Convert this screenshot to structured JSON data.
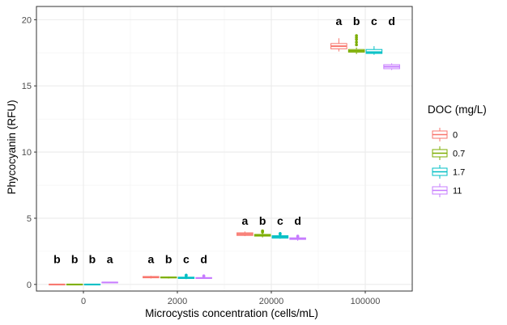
{
  "chart_data": {
    "type": "box",
    "xlabel": "Microcystis concentration (cells/mL)",
    "ylabel": "Phycocyanin (RFU)",
    "categories": [
      "0",
      "2000",
      "20000",
      "100000"
    ],
    "yticks": [
      0,
      5,
      10,
      15,
      20
    ],
    "ylim": [
      -0.5,
      21.0
    ],
    "grid": true,
    "legend": {
      "title": "DOC (mg/L)",
      "position": "right",
      "entries": [
        "0",
        "0.7",
        "1.7",
        "11"
      ]
    },
    "series": [
      {
        "name": "0",
        "color": "#F8766D",
        "boxes": [
          {
            "min": 0.0,
            "q1": 0.0,
            "median": 0.0,
            "q3": 0.02,
            "max": 0.04,
            "outliers": []
          },
          {
            "min": 0.45,
            "q1": 0.5,
            "median": 0.55,
            "q3": 0.6,
            "max": 0.65,
            "outliers": []
          },
          {
            "min": 3.65,
            "q1": 3.7,
            "median": 3.8,
            "q3": 3.9,
            "max": 4.0,
            "outliers": []
          },
          {
            "min": 17.6,
            "q1": 17.8,
            "median": 18.0,
            "q3": 18.2,
            "max": 18.6,
            "outliers": []
          }
        ],
        "letters": [
          "b",
          "a",
          "a",
          "a"
        ]
      },
      {
        "name": "0.7",
        "color": "#7CAE00",
        "boxes": [
          {
            "min": 0.0,
            "q1": 0.0,
            "median": 0.0,
            "q3": 0.02,
            "max": 0.03,
            "outliers": []
          },
          {
            "min": 0.45,
            "q1": 0.5,
            "median": 0.52,
            "q3": 0.56,
            "max": 0.6,
            "outliers": []
          },
          {
            "min": 3.55,
            "q1": 3.65,
            "median": 3.7,
            "q3": 3.78,
            "max": 3.85,
            "outliers": [
              3.95,
              4.0,
              4.05
            ]
          },
          {
            "min": 17.4,
            "q1": 17.55,
            "median": 17.65,
            "q3": 17.75,
            "max": 17.9,
            "outliers": [
              18.1,
              18.3,
              18.5,
              18.65,
              18.8
            ]
          }
        ],
        "letters": [
          "b",
          "b",
          "b",
          "b"
        ]
      },
      {
        "name": "1.7",
        "color": "#00BFC4",
        "boxes": [
          {
            "min": 0.0,
            "q1": 0.0,
            "median": 0.0,
            "q3": 0.02,
            "max": 0.03,
            "outliers": []
          },
          {
            "min": 0.4,
            "q1": 0.45,
            "median": 0.5,
            "q3": 0.55,
            "max": 0.6,
            "outliers": [
              0.65,
              0.7
            ]
          },
          {
            "min": 3.45,
            "q1": 3.5,
            "median": 3.6,
            "q3": 3.68,
            "max": 3.75,
            "outliers": [
              3.8,
              3.85
            ]
          },
          {
            "min": 17.35,
            "q1": 17.45,
            "median": 17.55,
            "q3": 17.75,
            "max": 18.0,
            "outliers": []
          }
        ],
        "letters": [
          "b",
          "c",
          "c",
          "c"
        ]
      },
      {
        "name": "11",
        "color": "#C77CFF",
        "boxes": [
          {
            "min": 0.12,
            "q1": 0.14,
            "median": 0.15,
            "q3": 0.17,
            "max": 0.18,
            "outliers": []
          },
          {
            "min": 0.42,
            "q1": 0.45,
            "median": 0.48,
            "q3": 0.52,
            "max": 0.55,
            "outliers": [
              0.6,
              0.65
            ]
          },
          {
            "min": 3.3,
            "q1": 3.4,
            "median": 3.45,
            "q3": 3.52,
            "max": 3.55,
            "outliers": [
              3.6,
              3.65
            ]
          },
          {
            "min": 16.2,
            "q1": 16.3,
            "median": 16.45,
            "q3": 16.6,
            "max": 16.7,
            "outliers": []
          }
        ],
        "letters": [
          "a",
          "d",
          "d",
          "d"
        ]
      }
    ],
    "letter_y": [
      1.9,
      1.9,
      4.8,
      19.9
    ]
  }
}
